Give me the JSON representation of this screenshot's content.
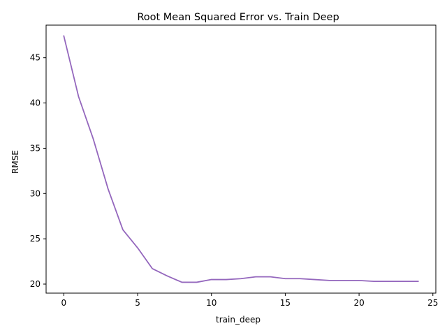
{
  "chart_data": {
    "type": "line",
    "title": "Root Mean Squared Error vs. Train Deep",
    "xlabel": "train_deep",
    "ylabel": "RMSE",
    "xlim": [
      -1.2,
      25.2
    ],
    "ylim": [
      19.0,
      48.6
    ],
    "xticks": [
      0,
      5,
      10,
      15,
      20,
      25
    ],
    "yticks": [
      20,
      25,
      30,
      35,
      40,
      45
    ],
    "grid": false,
    "series": [
      {
        "color": "#9467bd",
        "x": [
          0,
          1,
          2,
          3,
          4,
          5,
          6,
          7,
          8,
          9,
          10,
          11,
          12,
          13,
          14,
          15,
          16,
          17,
          18,
          19,
          20,
          21,
          22,
          23,
          24
        ],
        "values": [
          47.4,
          40.7,
          36.0,
          30.5,
          26.0,
          24.0,
          21.7,
          20.9,
          20.2,
          20.2,
          20.5,
          20.5,
          20.6,
          20.8,
          20.8,
          20.6,
          20.6,
          20.5,
          20.4,
          20.4,
          20.4,
          20.3,
          20.3,
          20.3,
          20.3
        ]
      }
    ]
  }
}
